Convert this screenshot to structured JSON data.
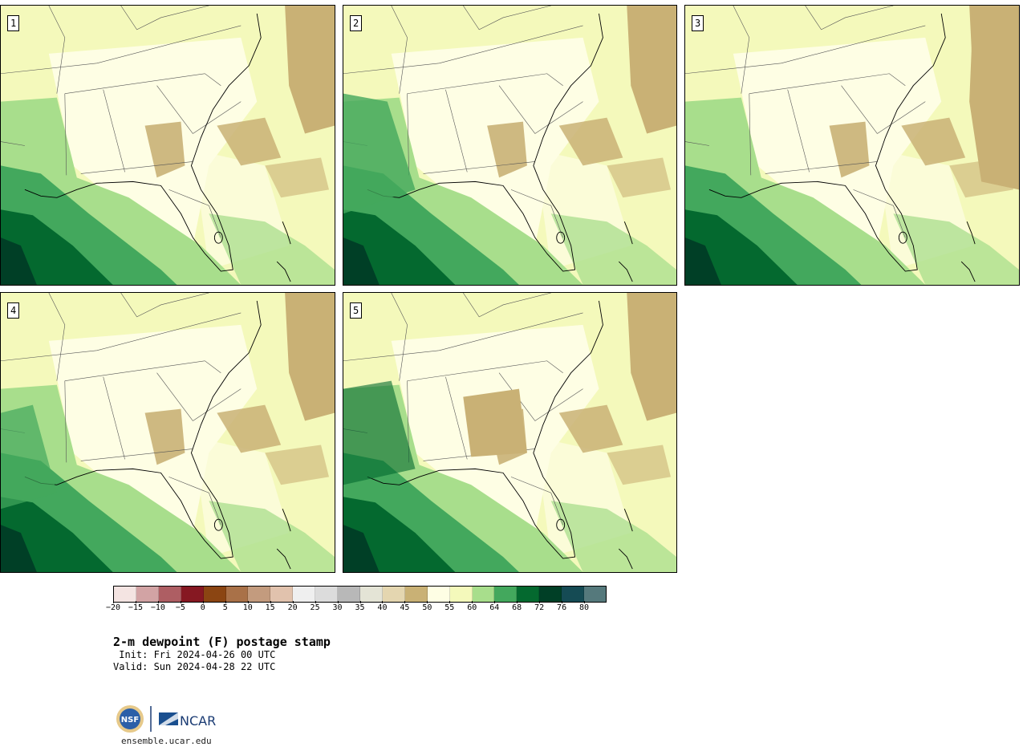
{
  "panels": [
    {
      "label": "1"
    },
    {
      "label": "2"
    },
    {
      "label": "3"
    },
    {
      "label": "4"
    },
    {
      "label": "5"
    }
  ],
  "legend": {
    "colors": [
      "#f4e4e2",
      "#d2a3a4",
      "#ae5e63",
      "#861822",
      "#8b4512",
      "#a97148",
      "#c39b7e",
      "#e1c2ad",
      "#efefef",
      "#dcdcdc",
      "#b8b8b8",
      "#e4e4d6",
      "#e4d6b0",
      "#c9b175",
      "#fefee4",
      "#f4f9bb",
      "#a8de8c",
      "#43a85d",
      "#04692f",
      "#003f26",
      "#154b54",
      "#55797c"
    ],
    "ticks": [
      "−20",
      "−15",
      "−10",
      "−5",
      "0",
      "5",
      "10",
      "15",
      "20",
      "25",
      "30",
      "35",
      "40",
      "45",
      "50",
      "55",
      "60",
      "64",
      "68",
      "72",
      "76",
      "80"
    ]
  },
  "title": "2-m dewpoint (F) postage stamp",
  "init": " Init: Fri 2024-04-26 00 UTC",
  "valid": "Valid: Sun 2024-04-28 22 UTC",
  "logo": {
    "nsf_text": "NSF",
    "ncar_text": "NCAR"
  },
  "site": "ensemble.ucar.edu"
}
